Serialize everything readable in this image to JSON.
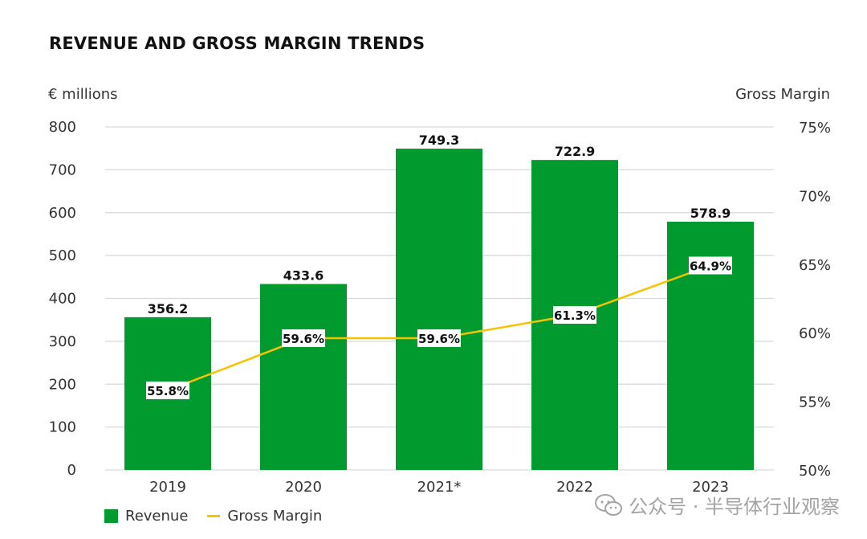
{
  "header": {
    "title": "REVENUE AND GROSS MARGIN TRENDS",
    "left_axis_unit": "€ millions",
    "right_axis_unit": "Gross Margin"
  },
  "colors": {
    "revenue_bar": "#009a2e",
    "gross_margin_line": "#f5c400",
    "grid": "#d9d9d9",
    "axis_text": "#333333"
  },
  "chart_data": {
    "type": "bar",
    "categories": [
      "2019",
      "2020",
      "2021*",
      "2022",
      "2023"
    ],
    "series": [
      {
        "name": "Revenue",
        "type": "bar",
        "axis": "left",
        "values": [
          356.2,
          433.6,
          749.3,
          722.9,
          578.9
        ],
        "labels": [
          "356.2",
          "433.6",
          "749.3",
          "722.9",
          "578.9"
        ]
      },
      {
        "name": "Gross Margin",
        "type": "line",
        "axis": "right",
        "values": [
          55.8,
          59.6,
          59.6,
          61.3,
          64.9
        ],
        "labels": [
          "55.8%",
          "59.6%",
          "59.6%",
          "61.3%",
          "64.9%"
        ]
      }
    ],
    "y_left": {
      "label": "€ millions",
      "range": [
        0,
        800
      ],
      "ticks": [
        "0",
        "100",
        "200",
        "300",
        "400",
        "500",
        "600",
        "700",
        "800"
      ]
    },
    "y_right": {
      "label": "Gross Margin",
      "range": [
        50,
        75
      ],
      "ticks": [
        "50%",
        "55%",
        "60%",
        "65%",
        "70%",
        "75%"
      ]
    },
    "grid": true,
    "legend_position": "bottom-left"
  },
  "legend": {
    "revenue_label": "Revenue",
    "gross_margin_label": "Gross Margin"
  },
  "watermark": {
    "text": "公众号 · 半导体行业观察",
    "icon": "wechat-icon"
  }
}
